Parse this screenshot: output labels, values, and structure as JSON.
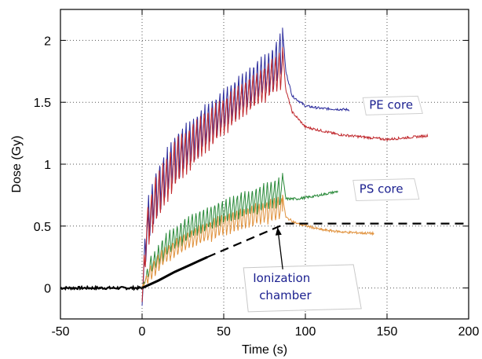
{
  "chart_data": {
    "type": "line",
    "xlabel": "Time (s)",
    "ylabel": "Dose (Gy)",
    "xlim": [
      -50,
      200
    ],
    "ylim": [
      -0.25,
      2.25
    ],
    "xticks": [
      -50,
      0,
      50,
      100,
      150,
      200
    ],
    "yticks": [
      0,
      0.5,
      1,
      1.5,
      2
    ],
    "xtick_labels": [
      "-50",
      "0",
      "50",
      "100",
      "150",
      "200"
    ],
    "ytick_labels": [
      "0",
      "0.5",
      "1",
      "1.5",
      "2"
    ],
    "grid": true,
    "grid_style": "dotted",
    "colors": {
      "pe_blue": "#2b2b9c",
      "pe_red": "#c0282d",
      "ps_green": "#2a8a3a",
      "ps_orange": "#e0903a",
      "chamber": "#000000"
    },
    "series": [
      {
        "color": "#2b2b9c",
        "style": "oscillating",
        "envelope_top": [
          [
            0,
            0
          ],
          [
            3,
            0.7
          ],
          [
            8,
            0.95
          ],
          [
            20,
            1.25
          ],
          [
            40,
            1.5
          ],
          [
            60,
            1.73
          ],
          [
            80,
            1.95
          ],
          [
            86,
            2.1
          ]
        ],
        "envelope_bottom": [
          [
            0,
            -0.15
          ],
          [
            3,
            0.3
          ],
          [
            8,
            0.55
          ],
          [
            20,
            0.85
          ],
          [
            40,
            1.15
          ],
          [
            60,
            1.4
          ],
          [
            80,
            1.6
          ],
          [
            86,
            1.7
          ]
        ],
        "decay": [
          [
            86,
            2.1
          ],
          [
            88,
            1.75
          ],
          [
            92,
            1.55
          ],
          [
            100,
            1.47
          ],
          [
            110,
            1.45
          ],
          [
            127,
            1.44
          ]
        ]
      },
      {
        "color": "#c0282d",
        "style": "oscillating",
        "envelope_top": [
          [
            0,
            0
          ],
          [
            3,
            0.65
          ],
          [
            8,
            0.9
          ],
          [
            20,
            1.2
          ],
          [
            40,
            1.45
          ],
          [
            60,
            1.65
          ],
          [
            80,
            1.85
          ],
          [
            86,
            1.95
          ]
        ],
        "envelope_bottom": [
          [
            0,
            -0.15
          ],
          [
            3,
            0.3
          ],
          [
            8,
            0.5
          ],
          [
            20,
            0.8
          ],
          [
            40,
            1.1
          ],
          [
            60,
            1.35
          ],
          [
            80,
            1.55
          ],
          [
            86,
            1.6
          ]
        ],
        "decay": [
          [
            86,
            1.95
          ],
          [
            88,
            1.6
          ],
          [
            92,
            1.42
          ],
          [
            100,
            1.3
          ],
          [
            120,
            1.24
          ],
          [
            150,
            1.2
          ],
          [
            175,
            1.23
          ]
        ]
      },
      {
        "color": "#2a8a3a",
        "style": "oscillating",
        "envelope_top": [
          [
            0,
            0
          ],
          [
            5,
            0.25
          ],
          [
            15,
            0.45
          ],
          [
            30,
            0.6
          ],
          [
            50,
            0.72
          ],
          [
            70,
            0.82
          ],
          [
            86,
            0.92
          ]
        ],
        "envelope_bottom": [
          [
            0,
            0
          ],
          [
            5,
            0.1
          ],
          [
            15,
            0.25
          ],
          [
            30,
            0.4
          ],
          [
            50,
            0.52
          ],
          [
            70,
            0.6
          ],
          [
            86,
            0.66
          ]
        ],
        "decay": [
          [
            86,
            0.92
          ],
          [
            88,
            0.72
          ],
          [
            95,
            0.72
          ],
          [
            105,
            0.74
          ],
          [
            120,
            0.78
          ]
        ]
      },
      {
        "color": "#e0903a",
        "style": "oscillating",
        "envelope_top": [
          [
            0,
            0
          ],
          [
            5,
            0.2
          ],
          [
            15,
            0.35
          ],
          [
            30,
            0.48
          ],
          [
            50,
            0.6
          ],
          [
            70,
            0.68
          ],
          [
            86,
            0.75
          ]
        ],
        "envelope_bottom": [
          [
            0,
            0
          ],
          [
            5,
            0.05
          ],
          [
            15,
            0.2
          ],
          [
            30,
            0.32
          ],
          [
            50,
            0.42
          ],
          [
            70,
            0.5
          ],
          [
            86,
            0.55
          ]
        ],
        "decay": [
          [
            86,
            0.75
          ],
          [
            88,
            0.57
          ],
          [
            95,
            0.52
          ],
          [
            110,
            0.47
          ],
          [
            125,
            0.45
          ],
          [
            142,
            0.44
          ]
        ]
      },
      {
        "color": "#000000",
        "style": "solid-then-dashed",
        "solid": [
          [
            0,
            0
          ],
          [
            10,
            0.06
          ],
          [
            20,
            0.13
          ],
          [
            30,
            0.19
          ],
          [
            40,
            0.25
          ]
        ],
        "dashed": [
          [
            40,
            0.25
          ],
          [
            88,
            0.52
          ],
          [
            200,
            0.52
          ]
        ]
      }
    ],
    "baseline": {
      "color": "#000000",
      "points": [
        [
          -50,
          0
        ],
        [
          0,
          0
        ]
      ]
    },
    "annotations": [
      {
        "text": "PE core",
        "x": 141,
        "y": 1.48
      },
      {
        "text": "PS core",
        "x": 135,
        "y": 0.8
      },
      {
        "lines": [
          "Ionization",
          "chamber"
        ],
        "x": 65,
        "y": 0.1,
        "arrow_to": [
          83,
          0.49
        ]
      }
    ]
  }
}
